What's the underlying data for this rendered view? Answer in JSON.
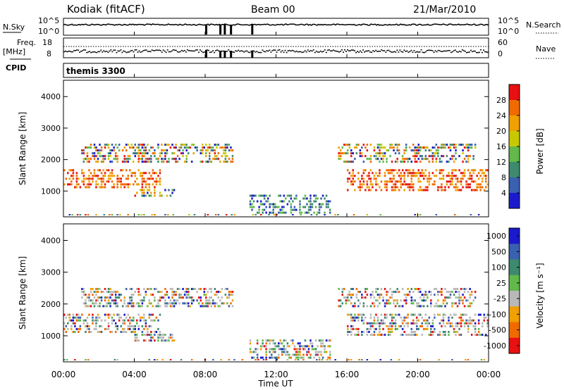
{
  "header": {
    "station": "Kodiak (fitACF)",
    "beam": "Beam 00",
    "date": "21/Mar/2010"
  },
  "noise_panel": {
    "left_label": "N.Sky",
    "right_label": "N.Search",
    "left_ticks": [
      "10^5",
      "10^0"
    ],
    "right_ticks": [
      "10^5",
      "10^0"
    ]
  },
  "freq_panel": {
    "left_label_1": "Freq.",
    "left_label_2": "[MHz]",
    "right_label": "Nave",
    "left_ticks": [
      "18",
      "8"
    ],
    "right_ticks": [
      "60",
      "0"
    ]
  },
  "cpid_panel": {
    "label": "CPID",
    "text": "themis 3300"
  },
  "colors": {
    "power": [
      "#1a1acc",
      "#3a60b0",
      "#3d8a6e",
      "#62b84a",
      "#c8c800",
      "#f0a000",
      "#f06a00",
      "#e81010"
    ],
    "velocity": [
      "#1a1acc",
      "#3a60b0",
      "#3d8a6e",
      "#62b84a",
      "#b8b8b8",
      "#f0a000",
      "#f06a00",
      "#e81010"
    ]
  },
  "chart_data": [
    {
      "type": "heatmap",
      "title": "Power",
      "ylabel": "Slant Range [km]",
      "xlabel": "",
      "xlim": [
        "00:00",
        "24:00"
      ],
      "ylim": [
        180,
        4520
      ],
      "yticks": [
        "1000",
        "2000",
        "3000",
        "4000"
      ],
      "colorbar": {
        "label": "Power [dB]",
        "ticks": [
          "4",
          "8",
          "12",
          "16",
          "20",
          "24",
          "28"
        ],
        "range": [
          0,
          32
        ]
      },
      "scatter_bands": [
        {
          "t0": 0.0,
          "t1": 5.4,
          "r0": 1100,
          "r1": 1700,
          "level": "high"
        },
        {
          "t0": 1.0,
          "t1": 9.5,
          "r0": 1850,
          "r1": 2500,
          "level": "mixed"
        },
        {
          "t0": 4.0,
          "t1": 6.2,
          "r0": 800,
          "r1": 1100,
          "level": "mixed"
        },
        {
          "t0": 10.5,
          "t1": 15.0,
          "r0": 280,
          "r1": 900,
          "level": "low"
        },
        {
          "t0": 15.5,
          "t1": 23.3,
          "r0": 1850,
          "r1": 2500,
          "level": "mixed"
        },
        {
          "t0": 16.0,
          "t1": 24.0,
          "r0": 1000,
          "r1": 1700,
          "level": "high"
        }
      ]
    },
    {
      "type": "heatmap",
      "title": "Velocity",
      "ylabel": "Slant Range [km]",
      "xlabel": "Time UT",
      "xlim": [
        "00:00",
        "24:00"
      ],
      "ylim": [
        180,
        4520
      ],
      "xticks": [
        "00:00",
        "04:00",
        "08:00",
        "12:00",
        "16:00",
        "20:00",
        "00:00"
      ],
      "yticks": [
        "1000",
        "2000",
        "3000",
        "4000"
      ],
      "colorbar": {
        "label": "Velocity [m s⁻¹]",
        "ticks": [
          "1000",
          "500",
          "100",
          "25",
          "-25",
          "-100",
          "-500",
          "-1000"
        ],
        "range": [
          -1200,
          1200
        ]
      },
      "scatter_bands": [
        {
          "t0": 0.0,
          "t1": 5.4,
          "r0": 1100,
          "r1": 1700,
          "level": "mixed"
        },
        {
          "t0": 1.0,
          "t1": 9.5,
          "r0": 1850,
          "r1": 2500,
          "level": "mixed"
        },
        {
          "t0": 4.0,
          "t1": 6.2,
          "r0": 800,
          "r1": 1100,
          "level": "mixed"
        },
        {
          "t0": 10.5,
          "t1": 15.0,
          "r0": 280,
          "r1": 900,
          "level": "mixed"
        },
        {
          "t0": 15.5,
          "t1": 23.3,
          "r0": 1850,
          "r1": 2500,
          "level": "mixed"
        },
        {
          "t0": 16.0,
          "t1": 24.0,
          "r0": 1000,
          "r1": 1700,
          "level": "mixed"
        }
      ]
    }
  ]
}
